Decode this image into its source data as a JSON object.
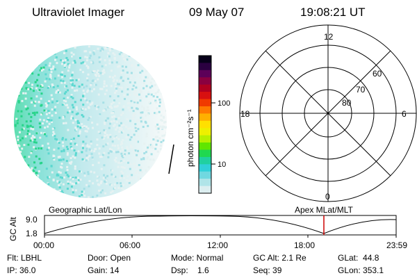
{
  "header": {
    "instrument": "Ultraviolet Imager",
    "date": "09 May 07",
    "time": "19:08:21 UT"
  },
  "colorbar": {
    "unit_label": "photon cm⁻²s⁻¹",
    "ticks": [
      "100",
      "10"
    ],
    "colors": [
      "#07001a",
      "#2a0040",
      "#5c0058",
      "#8a0040",
      "#b00020",
      "#d81010",
      "#f03a00",
      "#ff7a00",
      "#ffb000",
      "#ffe000",
      "#eef000",
      "#b8f000",
      "#60e600",
      "#20d850",
      "#20d0a0",
      "#30d0d8",
      "#70d8e0",
      "#b0e4e8",
      "#dceef0"
    ]
  },
  "polar_plot": {
    "mlt_labels": {
      "top": "12",
      "bottom": "0",
      "left": "18",
      "right": "6"
    },
    "lat_labels": [
      "60",
      "70",
      "80"
    ]
  },
  "orbit_plot": {
    "left_label": "Geographic Lat/Lon",
    "right_label": "Apex MLat/MLT",
    "y_axis_label": "GC Alt",
    "y_ticks": [
      "9.0",
      "1.8"
    ],
    "x_ticks": [
      "00:00",
      "06:00",
      "12:00",
      "18:00",
      "23:59"
    ],
    "marker_color": "#cc0000"
  },
  "footer": {
    "filter": "Flt: LBHL",
    "door": "Door: Open",
    "mode": "Mode: Normal",
    "gc_alt": "GC Alt: 2.1 Re",
    "glat": "GLat:  44.8",
    "ip": "IP: 36.0",
    "gain": "Gain: 14",
    "dsp": "Dsp:    1.6",
    "seq": "Seq: 39",
    "glon": "GLon: 353.1"
  }
}
